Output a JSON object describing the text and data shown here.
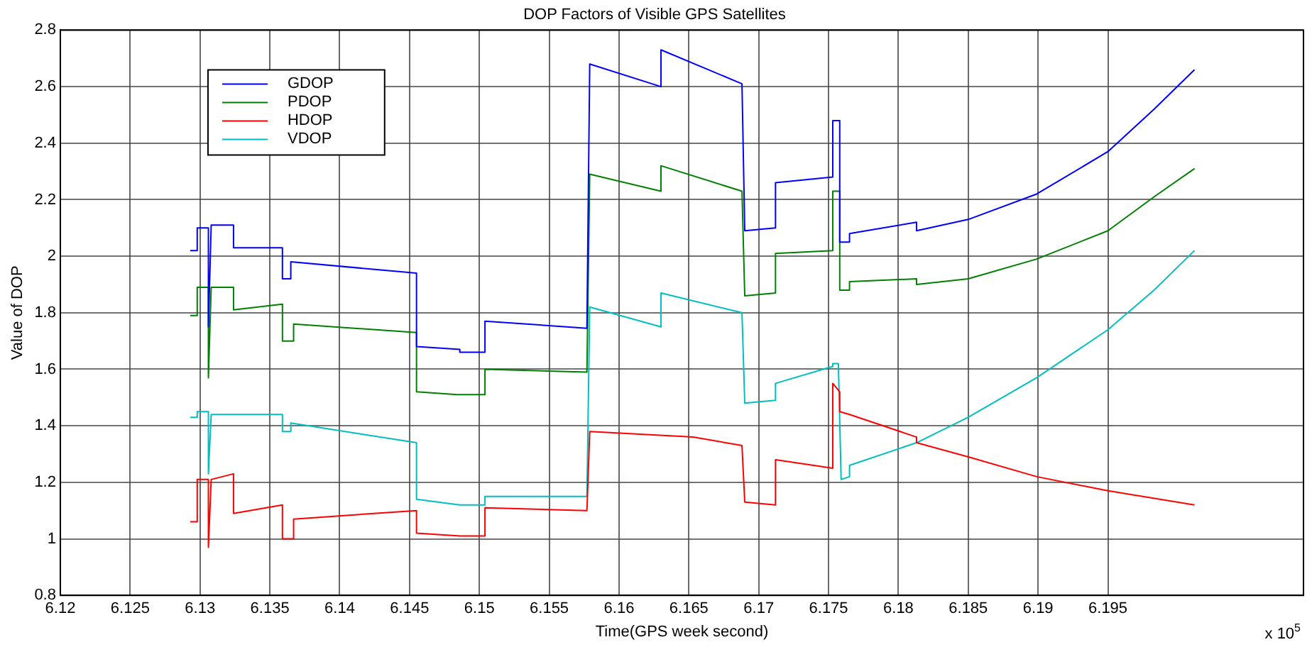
{
  "chart_data": {
    "type": "line",
    "title": "DOP Factors of Visible GPS Satellites",
    "xlabel": "Time(GPS week second)",
    "ylabel": "Value of DOP",
    "annotations": [
      "x 10$^{5}$"
    ],
    "xlim": [
      6.12,
      6.209
    ],
    "xticks": [
      6.12,
      6.125,
      6.13,
      6.135,
      6.14,
      6.145,
      6.15,
      6.155,
      6.16,
      6.165,
      6.17,
      6.175,
      6.18,
      6.185,
      6.19,
      6.195
    ],
    "ylim": [
      0.8,
      2.8
    ],
    "yticks": [
      0.8,
      1,
      1.2,
      1.4,
      1.6,
      1.8,
      2,
      2.2,
      2.4,
      2.6,
      2.8
    ],
    "grid": true,
    "legend": "top left",
    "marker": "none",
    "line_style": "solid",
    "series": [
      {
        "name": "GDOP",
        "color": "#0000ff",
        "x": [
          6.1293,
          6.1298,
          6.1298,
          6.1306,
          6.1306,
          6.1308,
          6.1324,
          6.1324,
          6.1359,
          6.1359,
          6.1365,
          6.1365,
          6.1455,
          6.1455,
          6.1486,
          6.1486,
          6.1504,
          6.1504,
          6.1577,
          6.1579,
          6.163,
          6.163,
          6.1688,
          6.169,
          6.1712,
          6.1712,
          6.1753,
          6.1753,
          6.1758,
          6.1758,
          6.1765,
          6.1765,
          6.1813,
          6.1813,
          6.185,
          6.1899,
          6.195,
          6.1983,
          6.2012
        ],
        "values": [
          2.02,
          2.02,
          2.1,
          2.1,
          1.75,
          2.11,
          2.11,
          2.03,
          2.03,
          1.92,
          1.92,
          1.98,
          1.94,
          1.68,
          1.67,
          1.66,
          1.66,
          1.77,
          1.745,
          2.68,
          2.6,
          2.73,
          2.61,
          2.09,
          2.1,
          2.26,
          2.28,
          2.48,
          2.48,
          2.05,
          2.05,
          2.08,
          2.12,
          2.09,
          2.13,
          2.22,
          2.37,
          2.52,
          2.66
        ]
      },
      {
        "name": "PDOP",
        "color": "#008000",
        "x": [
          6.1293,
          6.1298,
          6.1298,
          6.1306,
          6.1306,
          6.1308,
          6.1324,
          6.1324,
          6.1359,
          6.1359,
          6.1367,
          6.1367,
          6.1455,
          6.1455,
          6.1484,
          6.1504,
          6.1504,
          6.1577,
          6.1579,
          6.163,
          6.163,
          6.1688,
          6.169,
          6.1712,
          6.1712,
          6.1753,
          6.1753,
          6.1758,
          6.1758,
          6.1765,
          6.1765,
          6.1813,
          6.1813,
          6.185,
          6.1899,
          6.195,
          6.1983,
          6.2012
        ],
        "values": [
          1.79,
          1.79,
          1.89,
          1.89,
          1.57,
          1.89,
          1.89,
          1.81,
          1.83,
          1.7,
          1.7,
          1.76,
          1.73,
          1.52,
          1.51,
          1.51,
          1.6,
          1.59,
          2.29,
          2.23,
          2.32,
          2.23,
          1.86,
          1.87,
          2.01,
          2.02,
          2.23,
          2.23,
          1.88,
          1.88,
          1.91,
          1.92,
          1.9,
          1.92,
          1.99,
          2.09,
          2.21,
          2.31
        ]
      },
      {
        "name": "HDOP",
        "color": "#ff0000",
        "x": [
          6.1293,
          6.1298,
          6.1298,
          6.1306,
          6.1306,
          6.1308,
          6.1324,
          6.1324,
          6.1359,
          6.1359,
          6.1367,
          6.1367,
          6.1455,
          6.1455,
          6.1486,
          6.1504,
          6.1504,
          6.1577,
          6.1579,
          6.1653,
          6.1688,
          6.169,
          6.1712,
          6.1712,
          6.1753,
          6.1753,
          6.1758,
          6.1758,
          6.1765,
          6.1813,
          6.1813,
          6.185,
          6.1899,
          6.195,
          6.2012
        ],
        "values": [
          1.06,
          1.06,
          1.21,
          1.21,
          0.97,
          1.21,
          1.23,
          1.09,
          1.12,
          1.0,
          1.0,
          1.07,
          1.1,
          1.02,
          1.01,
          1.01,
          1.11,
          1.1,
          1.38,
          1.36,
          1.33,
          1.13,
          1.12,
          1.28,
          1.25,
          1.55,
          1.52,
          1.45,
          1.44,
          1.36,
          1.34,
          1.29,
          1.22,
          1.17,
          1.12
        ]
      },
      {
        "name": "VDOP",
        "color": "#00bfbf",
        "x": [
          6.1293,
          6.1298,
          6.1298,
          6.1306,
          6.1306,
          6.1308,
          6.1359,
          6.1359,
          6.1365,
          6.1365,
          6.1455,
          6.1455,
          6.1486,
          6.1504,
          6.1504,
          6.1577,
          6.1579,
          6.163,
          6.163,
          6.1688,
          6.169,
          6.1712,
          6.1712,
          6.1753,
          6.1753,
          6.1757,
          6.1759,
          6.1765,
          6.1765,
          6.1813,
          6.185,
          6.1899,
          6.195,
          6.1983,
          6.2012
        ],
        "values": [
          1.43,
          1.43,
          1.45,
          1.45,
          1.23,
          1.44,
          1.44,
          1.38,
          1.38,
          1.41,
          1.34,
          1.14,
          1.12,
          1.12,
          1.15,
          1.15,
          1.82,
          1.75,
          1.87,
          1.8,
          1.48,
          1.49,
          1.55,
          1.61,
          1.62,
          1.62,
          1.21,
          1.22,
          1.26,
          1.34,
          1.43,
          1.57,
          1.74,
          1.88,
          2.02
        ]
      }
    ]
  }
}
